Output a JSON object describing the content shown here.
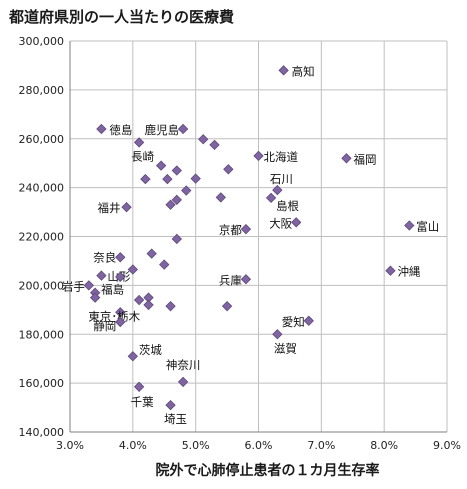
{
  "chart_data": {
    "type": "scatter",
    "title": "都道府県別の一人当たりの医療費",
    "xlabel": "院外で心肺停止患者の１カ月生存率",
    "ylabel": "",
    "xlim": [
      0.03,
      0.09
    ],
    "ylim": [
      140000,
      300000
    ],
    "x_ticks": [
      0.03,
      0.04,
      0.05,
      0.06,
      0.07,
      0.08,
      0.09
    ],
    "x_tick_labels": [
      "3.0%",
      "4.0%",
      "5.0%",
      "6.0%",
      "7.0%",
      "8.0%",
      "9.0%"
    ],
    "y_ticks": [
      140000,
      160000,
      180000,
      200000,
      220000,
      240000,
      260000,
      280000,
      300000
    ],
    "y_tick_labels": [
      "140,000",
      "160,000",
      "180,000",
      "200,000",
      "220,000",
      "240,000",
      "260,000",
      "280,000",
      "300,000"
    ],
    "grid": "vertical-and-horizontal",
    "marker_color": "#8064a2",
    "marker_edge": "#5c4a7a",
    "points": [
      {
        "x": 0.064,
        "y": 288000,
        "label": "高知"
      },
      {
        "x": 0.035,
        "y": 264000,
        "label": "徳島"
      },
      {
        "x": 0.048,
        "y": 264000,
        "label": "鹿児島"
      },
      {
        "x": 0.041,
        "y": 258500,
        "label": "長崎"
      },
      {
        "x": 0.0512,
        "y": 259800,
        "label": ""
      },
      {
        "x": 0.053,
        "y": 257500,
        "label": ""
      },
      {
        "x": 0.06,
        "y": 253000,
        "label": "北海道"
      },
      {
        "x": 0.074,
        "y": 252000,
        "label": "福岡"
      },
      {
        "x": 0.0445,
        "y": 249000,
        "label": ""
      },
      {
        "x": 0.047,
        "y": 247000,
        "label": ""
      },
      {
        "x": 0.0552,
        "y": 247500,
        "label": ""
      },
      {
        "x": 0.042,
        "y": 243500,
        "label": ""
      },
      {
        "x": 0.05,
        "y": 243700,
        "label": ""
      },
      {
        "x": 0.0455,
        "y": 243500,
        "label": ""
      },
      {
        "x": 0.0485,
        "y": 238800,
        "label": ""
      },
      {
        "x": 0.063,
        "y": 239000,
        "label": "石川"
      },
      {
        "x": 0.054,
        "y": 236000,
        "label": ""
      },
      {
        "x": 0.062,
        "y": 235800,
        "label": "島根"
      },
      {
        "x": 0.047,
        "y": 235000,
        "label": ""
      },
      {
        "x": 0.046,
        "y": 233000,
        "label": ""
      },
      {
        "x": 0.039,
        "y": 232000,
        "label": "福井"
      },
      {
        "x": 0.066,
        "y": 225800,
        "label": "大阪"
      },
      {
        "x": 0.084,
        "y": 224500,
        "label": "富山"
      },
      {
        "x": 0.058,
        "y": 223000,
        "label": "京都"
      },
      {
        "x": 0.047,
        "y": 219000,
        "label": ""
      },
      {
        "x": 0.043,
        "y": 213000,
        "label": ""
      },
      {
        "x": 0.038,
        "y": 211500,
        "label": "奈良"
      },
      {
        "x": 0.045,
        "y": 208500,
        "label": ""
      },
      {
        "x": 0.04,
        "y": 206500,
        "label": ""
      },
      {
        "x": 0.081,
        "y": 206000,
        "label": "沖縄"
      },
      {
        "x": 0.035,
        "y": 204000,
        "label": "山形"
      },
      {
        "x": 0.038,
        "y": 203500,
        "label": ""
      },
      {
        "x": 0.058,
        "y": 202500,
        "label": "兵庫"
      },
      {
        "x": 0.033,
        "y": 200000,
        "label": "岩手"
      },
      {
        "x": 0.034,
        "y": 197000,
        "label": "福島"
      },
      {
        "x": 0.034,
        "y": 195000,
        "label": ""
      },
      {
        "x": 0.041,
        "y": 194000,
        "label": ""
      },
      {
        "x": 0.0425,
        "y": 195000,
        "label": ""
      },
      {
        "x": 0.0425,
        "y": 192000,
        "label": ""
      },
      {
        "x": 0.046,
        "y": 191500,
        "label": ""
      },
      {
        "x": 0.055,
        "y": 191500,
        "label": ""
      },
      {
        "x": 0.038,
        "y": 189000,
        "label": "東京･栃木"
      },
      {
        "x": 0.068,
        "y": 185500,
        "label": "愛知"
      },
      {
        "x": 0.038,
        "y": 185000,
        "label": "静岡"
      },
      {
        "x": 0.063,
        "y": 180000,
        "label": "滋賀"
      },
      {
        "x": 0.04,
        "y": 171000,
        "label": "茨城"
      },
      {
        "x": 0.048,
        "y": 160500,
        "label": "神奈川"
      },
      {
        "x": 0.041,
        "y": 158500,
        "label": "千葉"
      },
      {
        "x": 0.046,
        "y": 151000,
        "label": "埼玉"
      }
    ]
  }
}
